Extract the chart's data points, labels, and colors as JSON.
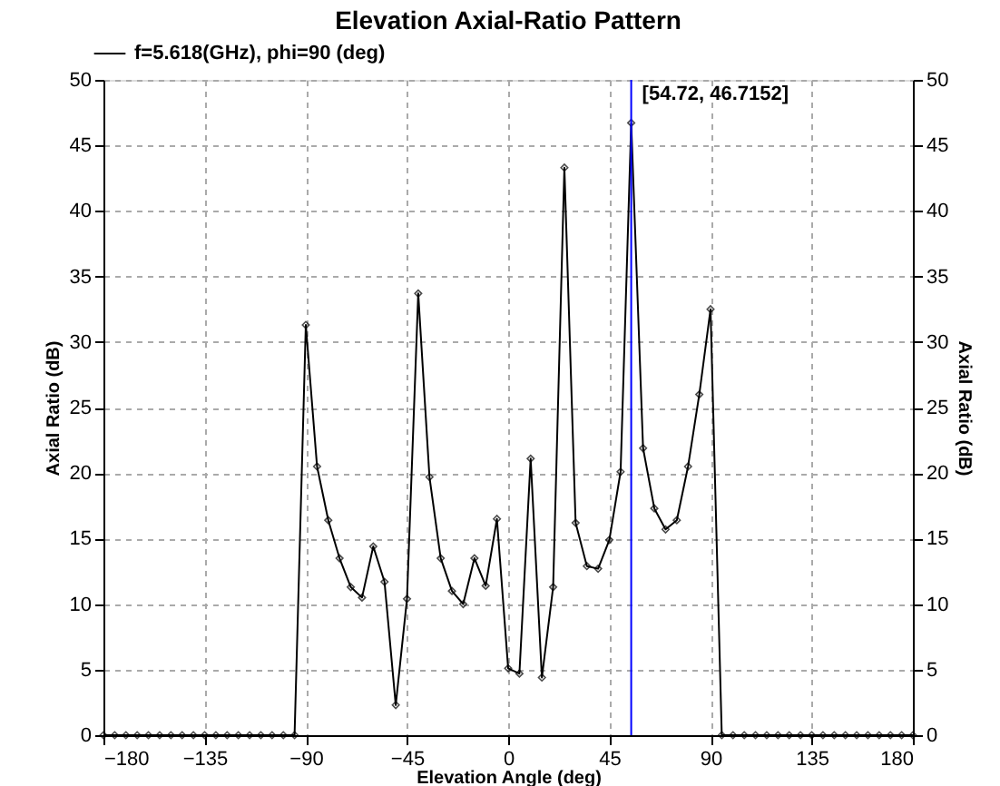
{
  "chart_data": {
    "type": "line",
    "title": "Elevation Axial-Ratio Pattern",
    "xlabel": "Elevation Angle (deg)",
    "ylabel": "Axial Ratio (dB)",
    "y2label": "Axial Ratio (dB)",
    "x": [
      -180,
      -175,
      -170,
      -165,
      -160,
      -155,
      -150,
      -145,
      -140,
      -135,
      -130,
      -125,
      -120,
      -115,
      -110,
      -105,
      -100,
      -95,
      -90,
      -85,
      -80,
      -75,
      -70,
      -65,
      -60,
      -55,
      -50,
      -45,
      -40,
      -35,
      -30,
      -25,
      -20,
      -15,
      -10,
      -5,
      0,
      5,
      10,
      15,
      20,
      25,
      30,
      35,
      40,
      45,
      50,
      54.72,
      60,
      65,
      70,
      75,
      80,
      85,
      90,
      95,
      100,
      105,
      110,
      115,
      120,
      125,
      130,
      135,
      140,
      145,
      150,
      155,
      160,
      165,
      170,
      175,
      180
    ],
    "series": [
      {
        "name": "f=5.618(GHz),  phi=90 (deg)",
        "color": "#000000",
        "values": [
          0,
          0,
          0,
          0,
          0,
          0,
          0,
          0,
          0,
          0,
          0,
          0,
          0,
          0,
          0,
          0,
          0,
          0,
          31.3,
          20.5,
          16.4,
          13.5,
          11.3,
          10.5,
          14.4,
          11.7,
          2.3,
          10.4,
          33.7,
          19.7,
          13.5,
          11.0,
          10.0,
          13.5,
          11.4,
          16.5,
          5.1,
          4.7,
          21.1,
          4.4,
          11.3,
          43.3,
          16.2,
          12.9,
          12.7,
          14.9,
          20.1,
          46.7152,
          21.9,
          17.3,
          15.7,
          16.4,
          20.5,
          26,
          32.5,
          0,
          0,
          0,
          0,
          0,
          0,
          0,
          0,
          0,
          0,
          0,
          0,
          0,
          0,
          0,
          0,
          0,
          0
        ]
      }
    ],
    "xlim": [
      -180,
      180
    ],
    "xticks": [
      -180,
      -135,
      -90,
      -45,
      0,
      45,
      90,
      135,
      180
    ],
    "ylim": [
      0,
      50
    ],
    "yticks": [
      0,
      5,
      10,
      15,
      20,
      25,
      30,
      35,
      40,
      45,
      50
    ],
    "y2lim": [
      0,
      50
    ],
    "y2ticks": [
      0,
      5,
      10,
      15,
      20,
      25,
      30,
      35,
      40,
      45,
      50
    ],
    "ref_lines": [
      {
        "axis": "x",
        "value": 54.72,
        "label": "[54.72, 46.7152]",
        "color": "#0000ff",
        "line_style": "solid"
      }
    ],
    "grid": true,
    "legend": "top left",
    "marker": "diamond",
    "line_style": "solid"
  }
}
